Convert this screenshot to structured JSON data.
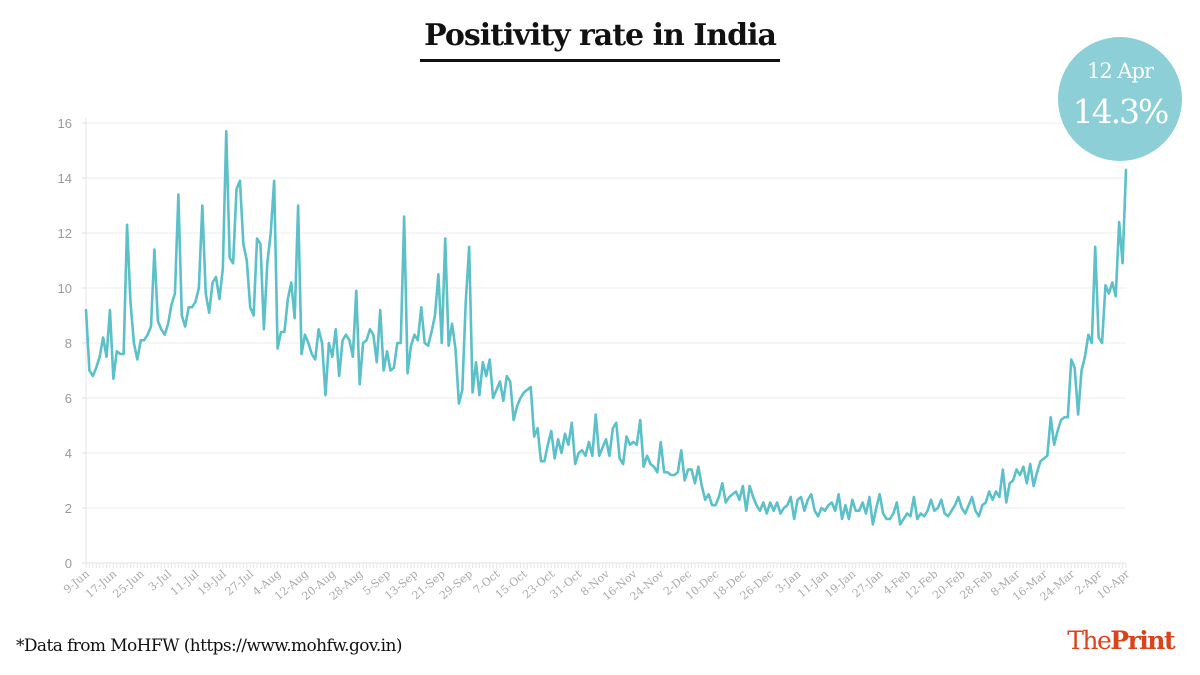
{
  "header": {
    "title": "Positivity rate in India"
  },
  "badge": {
    "date": "12 Apr",
    "value": "14.3%"
  },
  "footer": {
    "source_note": "*Data from MoHFW (https://www.mohfw.gov.in)",
    "logo_light": "The",
    "logo_bold": "Print"
  },
  "colors": {
    "line": "#5bc0c8",
    "badge": "#8ccfd6",
    "grid": "#ececec",
    "logo": "#d9441c"
  },
  "chart_data": {
    "type": "line",
    "title": "Positivity rate in India",
    "xlabel": "",
    "ylabel": "",
    "ylim": [
      0,
      16
    ],
    "yticks": [
      0,
      2,
      4,
      6,
      8,
      10,
      12,
      14,
      16
    ],
    "grid": true,
    "legend": "none",
    "x_start": "9-Jun",
    "x_end": "12-Apr",
    "xtick_labels": [
      "9-Jun",
      "17-Jun",
      "25-Jun",
      "3-Jul",
      "11-Jul",
      "19-Jul",
      "27-Jul",
      "4-Aug",
      "12-Aug",
      "20-Aug",
      "28-Aug",
      "5-Sep",
      "13-Sep",
      "21-Sep",
      "29-Sep",
      "7-Oct",
      "15-Oct",
      "23-Oct",
      "31-Oct",
      "8-Nov",
      "16-Nov",
      "24-Nov",
      "2-Dec",
      "10-Dec",
      "18-Dec",
      "26-Dec",
      "3-Jan",
      "11-Jan",
      "19-Jan",
      "27-Jan",
      "4-Feb",
      "12-Feb",
      "20-Feb",
      "28-Feb",
      "8-Mar",
      "16-Mar",
      "24-Mar",
      "2-Apr",
      "10-Apr"
    ],
    "xtick_step_days": 8,
    "annotation": {
      "label": "12 Apr",
      "value": 14.3
    },
    "series": [
      {
        "name": "Positivity rate (%)",
        "values": [
          9.2,
          7.0,
          6.8,
          7.1,
          7.5,
          8.2,
          7.5,
          9.2,
          6.7,
          7.7,
          7.6,
          7.6,
          12.3,
          9.5,
          8.0,
          7.4,
          8.1,
          8.1,
          8.3,
          8.6,
          11.4,
          8.8,
          8.5,
          8.3,
          8.7,
          9.4,
          9.8,
          13.4,
          9.0,
          8.6,
          9.3,
          9.3,
          9.5,
          10.0,
          13.0,
          9.8,
          9.1,
          10.2,
          10.4,
          9.6,
          10.7,
          15.7,
          11.1,
          10.9,
          13.6,
          13.9,
          11.6,
          11.0,
          9.3,
          9.0,
          11.8,
          11.6,
          8.5,
          10.9,
          12.0,
          13.9,
          7.8,
          8.4,
          8.4,
          9.6,
          10.2,
          8.9,
          13.0,
          7.6,
          8.3,
          8.0,
          7.6,
          7.4,
          8.5,
          8.0,
          6.1,
          8.0,
          7.5,
          8.5,
          6.8,
          8.1,
          8.3,
          8.1,
          7.5,
          9.9,
          6.5,
          8.0,
          8.1,
          8.5,
          8.3,
          7.3,
          9.2,
          7.0,
          7.7,
          7.0,
          7.1,
          8.0,
          8.0,
          12.6,
          6.9,
          7.9,
          8.3,
          8.1,
          9.3,
          8.0,
          7.9,
          8.4,
          9.0,
          10.5,
          8.0,
          11.8,
          7.9,
          8.7,
          7.8,
          5.8,
          6.3,
          9.5,
          11.5,
          6.2,
          7.3,
          6.1,
          7.3,
          6.8,
          7.4,
          6.0,
          6.3,
          6.6,
          5.9,
          6.8,
          6.6,
          5.2,
          5.7,
          6.0,
          6.2,
          6.3,
          6.4,
          4.6,
          4.9,
          3.7,
          3.7,
          4.3,
          4.8,
          3.8,
          4.5,
          4.0,
          4.7,
          4.3,
          5.1,
          3.6,
          4.0,
          4.1,
          3.9,
          4.4,
          3.9,
          5.4,
          3.9,
          4.2,
          4.5,
          3.9,
          4.9,
          5.1,
          3.8,
          3.6,
          4.6,
          4.3,
          4.4,
          4.3,
          5.2,
          3.5,
          3.9,
          3.6,
          3.5,
          3.3,
          4.4,
          3.3,
          3.3,
          3.2,
          3.2,
          3.3,
          4.1,
          3.0,
          3.4,
          3.4,
          2.9,
          3.5,
          2.8,
          2.3,
          2.5,
          2.1,
          2.1,
          2.4,
          2.9,
          2.2,
          2.4,
          2.5,
          2.6,
          2.3,
          2.8,
          1.9,
          2.8,
          2.4,
          2.1,
          1.9,
          2.2,
          1.8,
          2.2,
          1.9,
          2.2,
          1.8,
          2.0,
          2.1,
          2.4,
          1.6,
          2.3,
          2.4,
          1.9,
          2.3,
          2.5,
          1.9,
          1.7,
          2.0,
          1.9,
          2.1,
          2.2,
          1.9,
          2.5,
          1.6,
          2.1,
          1.6,
          2.3,
          1.9,
          1.9,
          2.2,
          1.8,
          2.4,
          1.4,
          2.0,
          2.5,
          1.8,
          1.6,
          1.6,
          1.8,
          2.2,
          1.4,
          1.6,
          1.8,
          1.7,
          2.4,
          1.6,
          1.8,
          1.7,
          1.9,
          2.3,
          1.9,
          2.0,
          2.3,
          1.8,
          1.7,
          1.9,
          2.1,
          2.4,
          2.0,
          1.8,
          2.1,
          2.4,
          1.9,
          1.7,
          2.1,
          2.2,
          2.6,
          2.3,
          2.6,
          2.4,
          3.4,
          2.2,
          2.9,
          3.0,
          3.4,
          3.2,
          3.5,
          2.9,
          3.6,
          2.8,
          3.3,
          3.7,
          3.8,
          3.9,
          5.3,
          4.3,
          4.8,
          5.2,
          5.3,
          5.3,
          7.4,
          7.1,
          5.4,
          7.0,
          7.5,
          8.3,
          8.0,
          11.5,
          8.2,
          8.0,
          10.1,
          9.8,
          10.2,
          9.7,
          12.4,
          10.9,
          14.3
        ]
      }
    ]
  }
}
